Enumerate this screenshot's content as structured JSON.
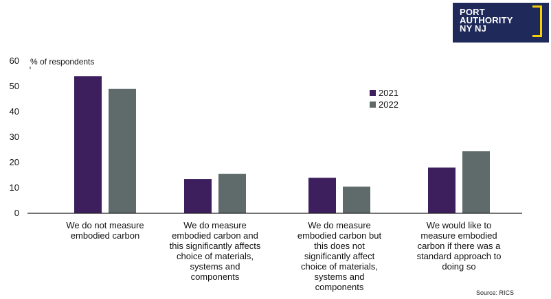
{
  "logo": {
    "lines": [
      "PORT",
      "AUTHORITY",
      "NY NJ"
    ]
  },
  "source": "Source: RICS",
  "chart_data": {
    "type": "bar",
    "title": "",
    "ylabel": "% of respondents",
    "xlabel": "",
    "ylim": [
      0,
      60
    ],
    "yticks": [
      0,
      10,
      20,
      30,
      40,
      50,
      60
    ],
    "grid": false,
    "legend_position": "top-right",
    "categories": [
      [
        "We do not measure",
        "embodied carbon"
      ],
      [
        "We do measure",
        "embodied carbon and",
        "this significantly affects",
        "choice of materials,",
        "systems and",
        "components"
      ],
      [
        "We do measure",
        "embodied carbon but",
        "this does not",
        "significantly affect",
        "choice of materials,",
        "systems and",
        "components"
      ],
      [
        "We would like to",
        "measure embodied",
        "carbon if there was a",
        "standard approach to",
        "doing so"
      ]
    ],
    "series": [
      {
        "name": "2021",
        "color": "#3d1f5e",
        "values": [
          54,
          13.5,
          14,
          18
        ]
      },
      {
        "name": "2022",
        "color": "#5f6a6a",
        "values": [
          49,
          15.5,
          10.5,
          24.5
        ]
      }
    ]
  }
}
